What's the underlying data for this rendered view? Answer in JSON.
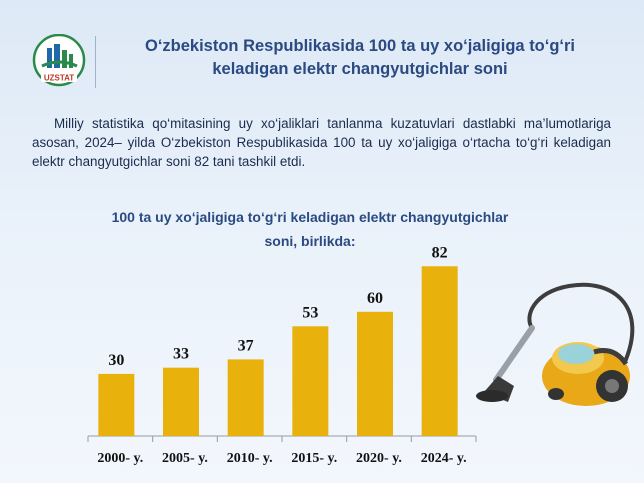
{
  "header": {
    "logo_text": "UZSTAT",
    "title_line1": "O‘zbekiston Respublikasida 100 ta uy xo‘jaligiga to‘g‘ri",
    "title_line2": "keladigan elektr changyutgichlar soni"
  },
  "description": "Milliy statistika qo‘mitasining uy xo‘jaliklari tanlanma kuzatuvlari dastlabki ma’lumotlariga asosan, 2024– yilda O‘zbekiston Respublikasida 100 ta uy xo‘jaligiga o‘rtacha to‘g‘ri keladigan elektr changyutgichlar soni 82 tani tashkil etdi.",
  "colors": {
    "bar": "#e8b10c",
    "title": "#2b4a82",
    "axis": "#9a9a9a"
  },
  "chart_data": {
    "type": "bar",
    "title_line1": "100 ta uy xo‘jaligiga to‘g‘ri keladigan elektr changyutgichlar",
    "title_line2": "soni, birlikda:",
    "categories": [
      "2000- y.",
      "2005- y.",
      "2010- y.",
      "2015- y.",
      "2020- y.",
      "2024- y."
    ],
    "values": [
      30,
      33,
      37,
      53,
      60,
      82
    ],
    "ylim": [
      0,
      100
    ],
    "grid": false,
    "data_labels": true
  },
  "decoration": {
    "icon": "vacuum-cleaner-icon"
  }
}
